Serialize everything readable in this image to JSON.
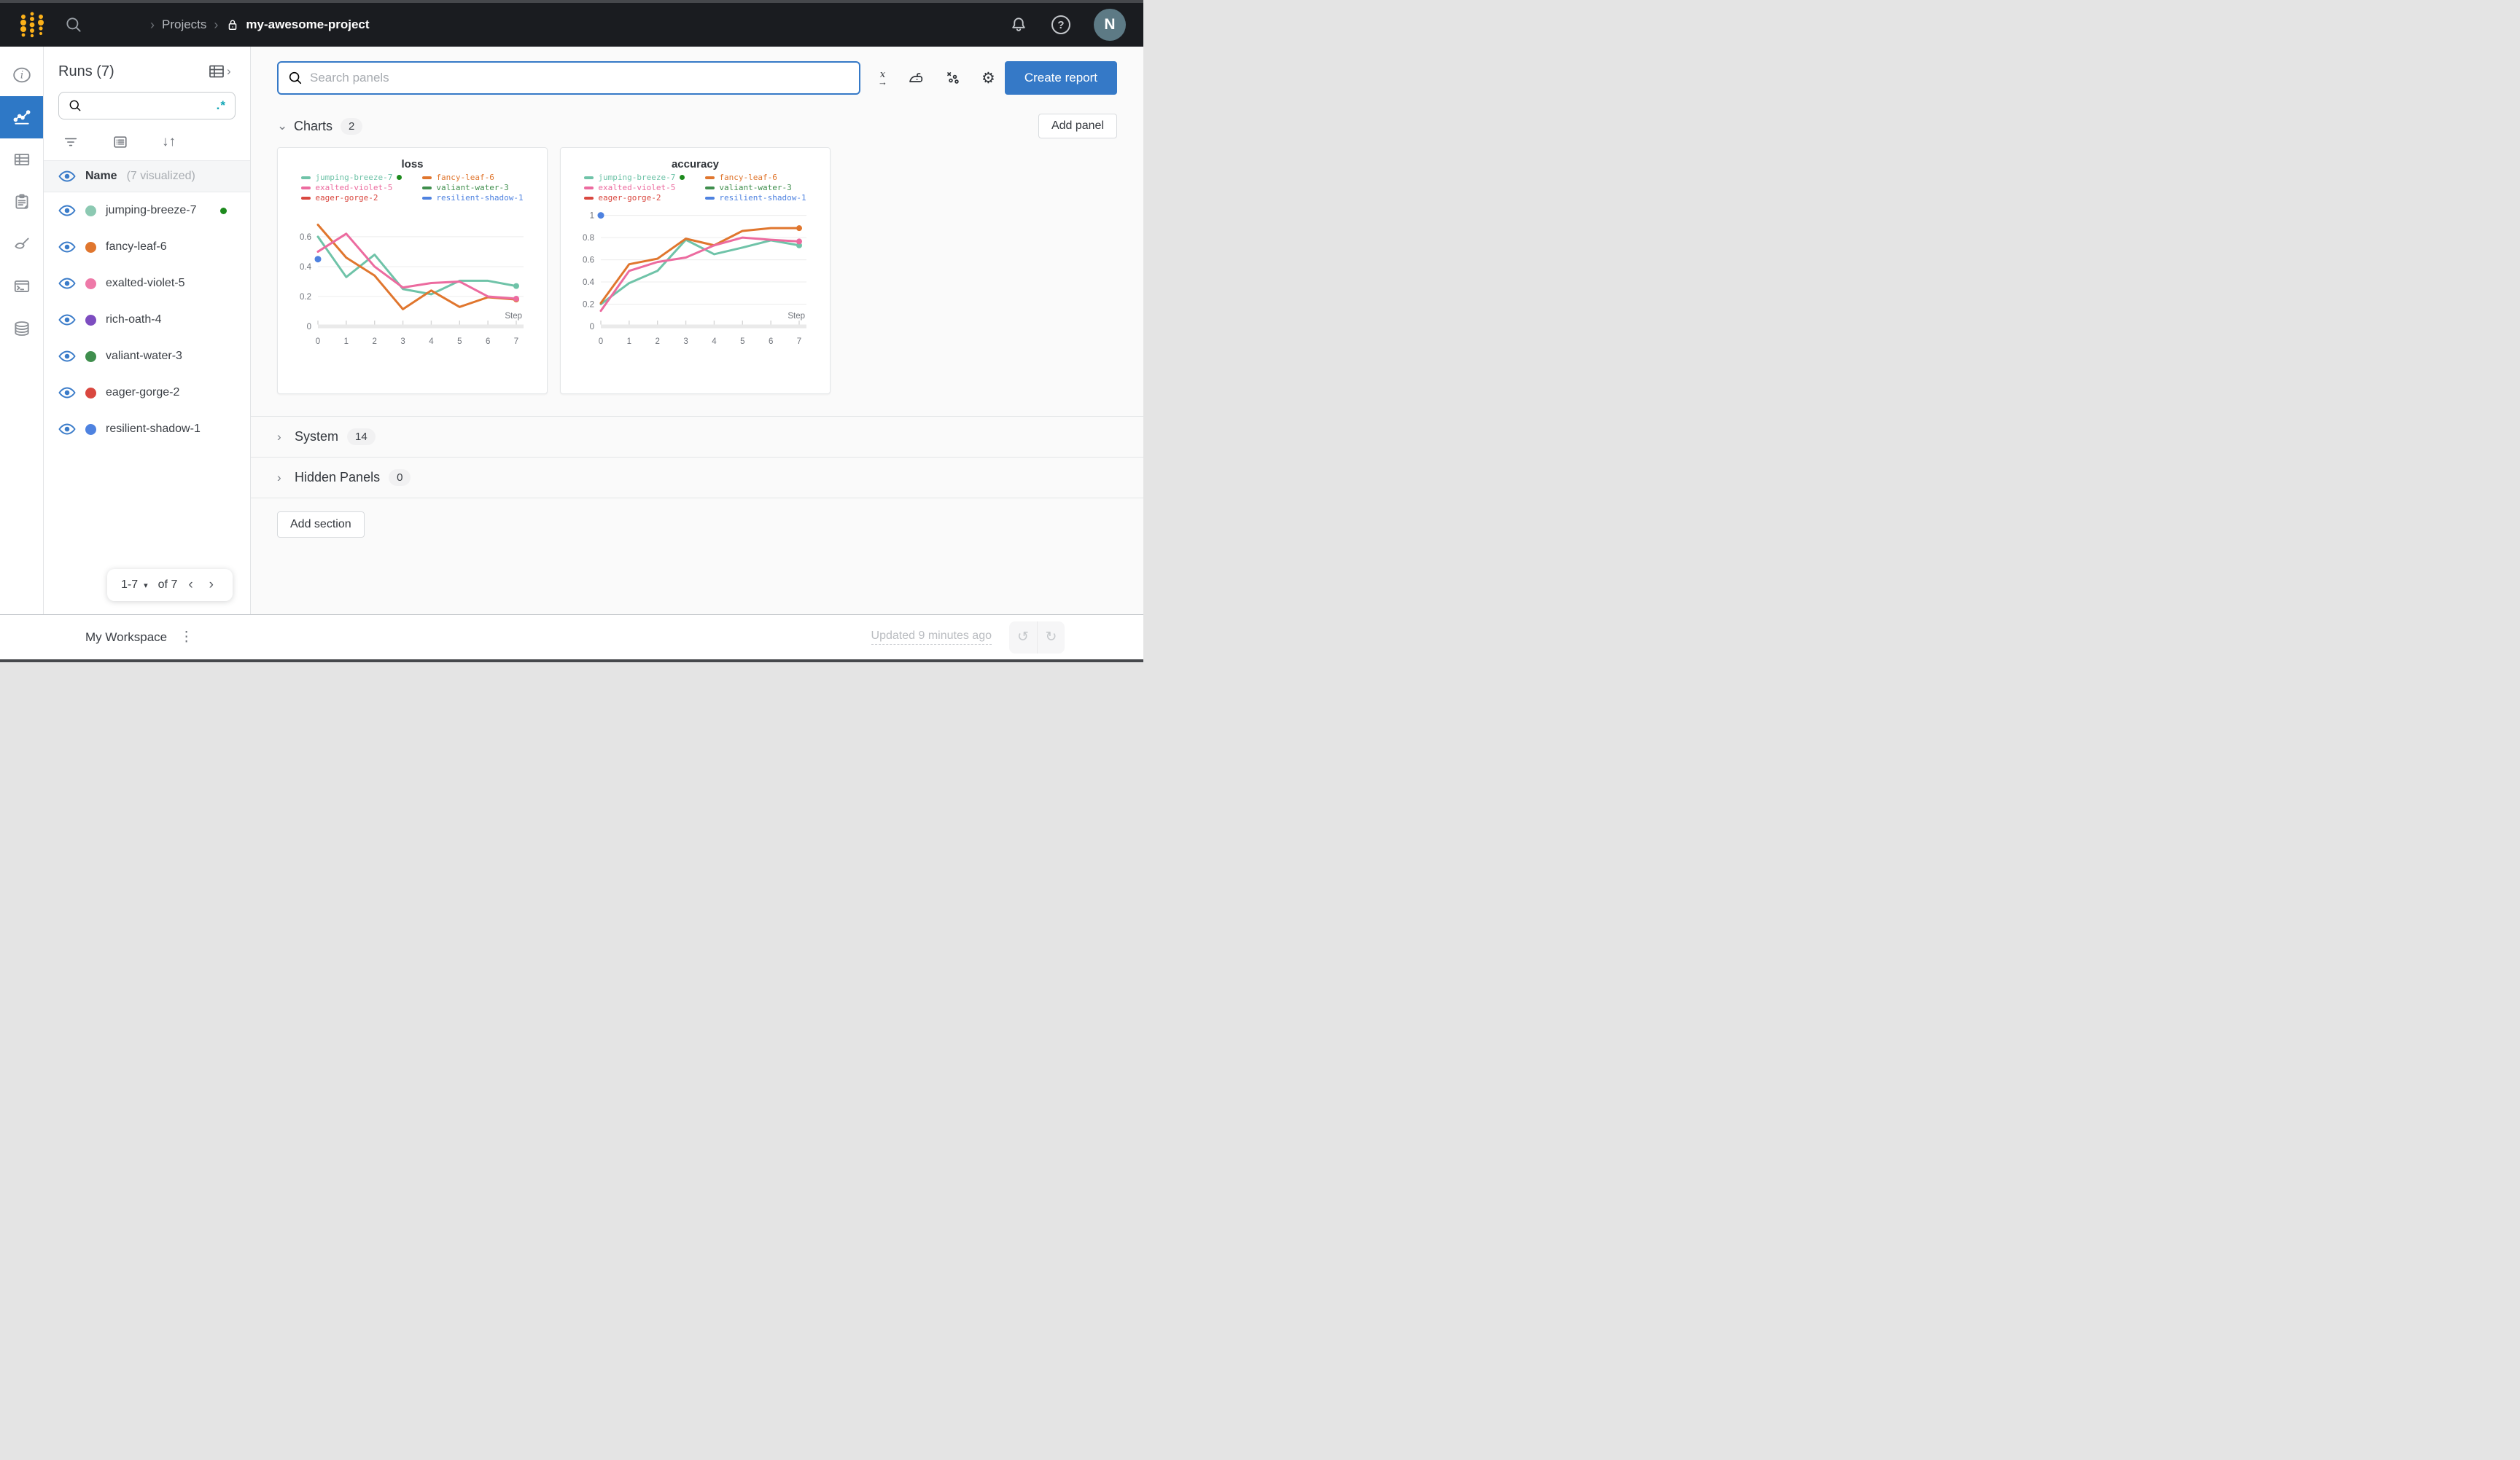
{
  "header": {
    "breadcrumb": {
      "section": "Projects",
      "project": "my-awesome-project"
    },
    "avatar_initial": "N"
  },
  "icons": {
    "chevron_right": "›",
    "chevron_left": "‹",
    "chevron_down": "⌄",
    "caret_down": "▾",
    "kebab": "⋮",
    "gear": "⚙",
    "undo": "↺",
    "redo": "↻",
    "sort": "↓↑",
    "question": "?",
    "x_italic": "x",
    "arrow_right": "→"
  },
  "runs_panel": {
    "title": "Runs (7)",
    "search_placeholder": "",
    "regex_label": ".*",
    "header": {
      "name": "Name",
      "visualized": "(7 visualized)"
    },
    "runs": [
      {
        "name": "jumping-breeze-7",
        "color": "#8cc9b2",
        "running": true
      },
      {
        "name": "fancy-leaf-6",
        "color": "#e0762e",
        "running": false
      },
      {
        "name": "exalted-violet-5",
        "color": "#ee79a8",
        "running": false
      },
      {
        "name": "rich-oath-4",
        "color": "#7d4dc0",
        "running": false
      },
      {
        "name": "valiant-water-3",
        "color": "#3f8e4d",
        "running": false
      },
      {
        "name": "eager-gorge-2",
        "color": "#d9473f",
        "running": false
      },
      {
        "name": "resilient-shadow-1",
        "color": "#4e82e0",
        "running": false
      }
    ],
    "pagination": {
      "range": "1-7",
      "of": "of 7"
    }
  },
  "toolbar": {
    "search_placeholder": "Search panels",
    "create_report": "Create report"
  },
  "sections": {
    "charts": {
      "label": "Charts",
      "count": "2"
    },
    "system": {
      "label": "System",
      "count": "14"
    },
    "hidden": {
      "label": "Hidden Panels",
      "count": "0"
    },
    "add_panel": "Add panel",
    "add_section": "Add section"
  },
  "footer": {
    "workspace_label": "My Workspace",
    "updated_text": "Updated 9 minutes ago"
  },
  "chart_data": [
    {
      "id": "loss",
      "type": "line",
      "title": "loss",
      "xlabel": "Step",
      "x": [
        0,
        1,
        2,
        3,
        4,
        5,
        6,
        7
      ],
      "yticks": [
        0,
        0.2,
        0.4,
        0.6
      ],
      "ylim": [
        0,
        0.78
      ],
      "legend": [
        {
          "name": "jumping-breeze-7",
          "color": "#6fc3a8",
          "running": true
        },
        {
          "name": "fancy-leaf-6",
          "color": "#e0762e"
        },
        {
          "name": "exalted-violet-5",
          "color": "#ec6b9f"
        },
        {
          "name": "valiant-water-3",
          "color": "#3f8e4d"
        },
        {
          "name": "eager-gorge-2",
          "color": "#d9473f"
        },
        {
          "name": "resilient-shadow-1",
          "color": "#4e82e0"
        }
      ],
      "series": [
        {
          "name": "jumping-breeze-7",
          "color": "#6fc3a8",
          "values": [
            0.6,
            0.33,
            0.48,
            0.25,
            0.215,
            0.305,
            0.305,
            0.27
          ]
        },
        {
          "name": "fancy-leaf-6",
          "color": "#e0762e",
          "values": [
            0.68,
            0.46,
            0.34,
            0.115,
            0.24,
            0.13,
            0.195,
            0.18
          ]
        },
        {
          "name": "exalted-violet-5",
          "color": "#ec6b9f",
          "values": [
            0.5,
            0.62,
            0.4,
            0.26,
            0.29,
            0.3,
            0.2,
            0.185
          ]
        }
      ],
      "points": [
        {
          "name": "resilient-shadow-1",
          "color": "#4e82e0",
          "x": 0,
          "y": 0.45
        }
      ]
    },
    {
      "id": "accuracy",
      "type": "line",
      "title": "accuracy",
      "xlabel": "Step",
      "x": [
        0,
        1,
        2,
        3,
        4,
        5,
        6,
        7
      ],
      "yticks": [
        0,
        0.2,
        0.4,
        0.6,
        0.8,
        1
      ],
      "ylim": [
        0,
        1.05
      ],
      "legend": [
        {
          "name": "jumping-breeze-7",
          "color": "#6fc3a8",
          "running": true
        },
        {
          "name": "fancy-leaf-6",
          "color": "#e0762e"
        },
        {
          "name": "exalted-violet-5",
          "color": "#ec6b9f"
        },
        {
          "name": "valiant-water-3",
          "color": "#3f8e4d"
        },
        {
          "name": "eager-gorge-2",
          "color": "#d9473f"
        },
        {
          "name": "resilient-shadow-1",
          "color": "#4e82e0"
        }
      ],
      "series": [
        {
          "name": "jumping-breeze-7",
          "color": "#6fc3a8",
          "values": [
            0.2,
            0.39,
            0.5,
            0.78,
            0.65,
            0.71,
            0.775,
            0.73
          ]
        },
        {
          "name": "fancy-leaf-6",
          "color": "#e0762e",
          "values": [
            0.21,
            0.56,
            0.61,
            0.79,
            0.73,
            0.86,
            0.885,
            0.885
          ]
        },
        {
          "name": "exalted-violet-5",
          "color": "#ec6b9f",
          "values": [
            0.14,
            0.5,
            0.58,
            0.62,
            0.73,
            0.8,
            0.78,
            0.765
          ]
        }
      ],
      "points": [
        {
          "name": "resilient-shadow-1",
          "color": "#4e82e0",
          "x": 0,
          "y": 1.0
        }
      ]
    }
  ]
}
